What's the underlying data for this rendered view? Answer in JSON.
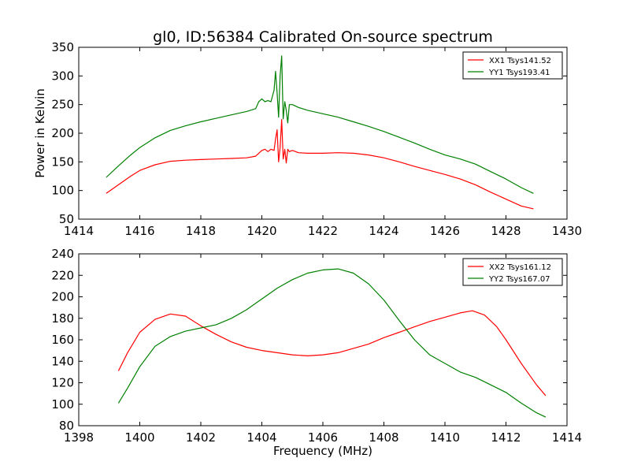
{
  "figure": {
    "title": "gl0, ID:56384 Calibrated On-source spectrum",
    "xlabel": "Frequency (MHz)"
  },
  "chart_data": [
    {
      "type": "line",
      "title": "gl0, ID:56384 Calibrated On-source spectrum",
      "xlabel": "",
      "ylabel": "Power in Kelvin",
      "xlim": [
        1414,
        1430
      ],
      "ylim": [
        50,
        350
      ],
      "xticks": [
        1414,
        1416,
        1418,
        1420,
        1422,
        1424,
        1426,
        1428,
        1430
      ],
      "yticks": [
        50,
        100,
        150,
        200,
        250,
        300,
        350
      ],
      "grid": false,
      "legend": "top-right",
      "series": [
        {
          "name": "XX1 Tsys141.52",
          "color": "#ff0000",
          "x": [
            1414.9,
            1415.3,
            1415.7,
            1416.0,
            1416.5,
            1417.0,
            1417.5,
            1418.0,
            1418.5,
            1419.0,
            1419.5,
            1419.8,
            1420.0,
            1420.1,
            1420.2,
            1420.3,
            1420.4,
            1420.45,
            1420.5,
            1420.55,
            1420.6,
            1420.65,
            1420.7,
            1420.75,
            1420.8,
            1420.85,
            1420.9,
            1421.0,
            1421.2,
            1421.5,
            1422.0,
            1422.5,
            1423.0,
            1423.5,
            1424.0,
            1424.5,
            1425.0,
            1425.5,
            1426.0,
            1426.5,
            1427.0,
            1427.5,
            1428.0,
            1428.5,
            1428.9
          ],
          "y": [
            95,
            110,
            125,
            135,
            145,
            151,
            153,
            154,
            155,
            156,
            157,
            160,
            170,
            172,
            168,
            172,
            170,
            190,
            206,
            150,
            175,
            224,
            155,
            172,
            148,
            172,
            168,
            170,
            166,
            165,
            165,
            166,
            165,
            162,
            157,
            150,
            142,
            135,
            128,
            120,
            110,
            97,
            85,
            73,
            68
          ]
        },
        {
          "name": "YY1 Tsys193.41",
          "color": "#008000",
          "x": [
            1414.9,
            1415.3,
            1415.7,
            1416.0,
            1416.5,
            1417.0,
            1417.5,
            1418.0,
            1418.5,
            1419.0,
            1419.5,
            1419.8,
            1419.9,
            1420.0,
            1420.1,
            1420.2,
            1420.3,
            1420.4,
            1420.45,
            1420.5,
            1420.55,
            1420.6,
            1420.65,
            1420.7,
            1420.75,
            1420.8,
            1420.85,
            1420.9,
            1421.0,
            1421.2,
            1421.5,
            1422.0,
            1422.5,
            1423.0,
            1423.5,
            1424.0,
            1424.5,
            1425.0,
            1425.5,
            1426.0,
            1426.5,
            1427.0,
            1427.5,
            1428.0,
            1428.5,
            1428.9
          ],
          "y": [
            123,
            143,
            162,
            175,
            192,
            205,
            213,
            220,
            226,
            232,
            238,
            243,
            255,
            260,
            255,
            257,
            255,
            275,
            308,
            270,
            228,
            300,
            335,
            225,
            255,
            240,
            218,
            250,
            250,
            245,
            240,
            234,
            228,
            220,
            212,
            203,
            193,
            183,
            172,
            162,
            155,
            146,
            133,
            120,
            105,
            95
          ]
        }
      ]
    },
    {
      "type": "line",
      "title": "",
      "xlabel": "Frequency (MHz)",
      "ylabel": "",
      "xlim": [
        1398,
        1414
      ],
      "ylim": [
        80,
        240
      ],
      "xticks": [
        1398,
        1400,
        1402,
        1404,
        1406,
        1408,
        1410,
        1412,
        1414
      ],
      "yticks": [
        80,
        100,
        120,
        140,
        160,
        180,
        200,
        220,
        240
      ],
      "grid": false,
      "legend": "top-right",
      "series": [
        {
          "name": "XX2 Tsys161.12",
          "color": "#ff0000",
          "x": [
            1399.3,
            1399.6,
            1400.0,
            1400.5,
            1401.0,
            1401.5,
            1402.0,
            1402.5,
            1403.0,
            1403.5,
            1404.0,
            1404.5,
            1405.0,
            1405.5,
            1406.0,
            1406.5,
            1407.0,
            1407.5,
            1408.0,
            1408.5,
            1409.0,
            1409.5,
            1410.0,
            1410.5,
            1410.9,
            1411.3,
            1411.7,
            1412.0,
            1412.5,
            1413.0,
            1413.3
          ],
          "y": [
            131,
            148,
            167,
            179,
            184,
            182,
            173,
            165,
            158,
            153,
            150,
            148,
            146,
            145,
            146,
            148,
            152,
            156,
            162,
            167,
            172,
            177,
            181,
            185,
            187,
            183,
            172,
            160,
            138,
            118,
            108
          ]
        },
        {
          "name": "YY2 Tsys167.07",
          "color": "#008000",
          "x": [
            1399.3,
            1399.6,
            1400.0,
            1400.5,
            1401.0,
            1401.5,
            1402.0,
            1402.5,
            1403.0,
            1403.5,
            1404.0,
            1404.5,
            1405.0,
            1405.5,
            1406.0,
            1406.5,
            1407.0,
            1407.5,
            1408.0,
            1408.5,
            1409.0,
            1409.5,
            1410.0,
            1410.5,
            1411.0,
            1411.5,
            1412.0,
            1412.5,
            1413.0,
            1413.3
          ],
          "y": [
            101,
            115,
            135,
            154,
            163,
            168,
            171,
            174,
            180,
            188,
            198,
            208,
            216,
            222,
            225,
            226,
            222,
            212,
            197,
            178,
            160,
            146,
            138,
            130,
            125,
            118,
            111,
            101,
            92,
            88
          ]
        }
      ]
    }
  ]
}
